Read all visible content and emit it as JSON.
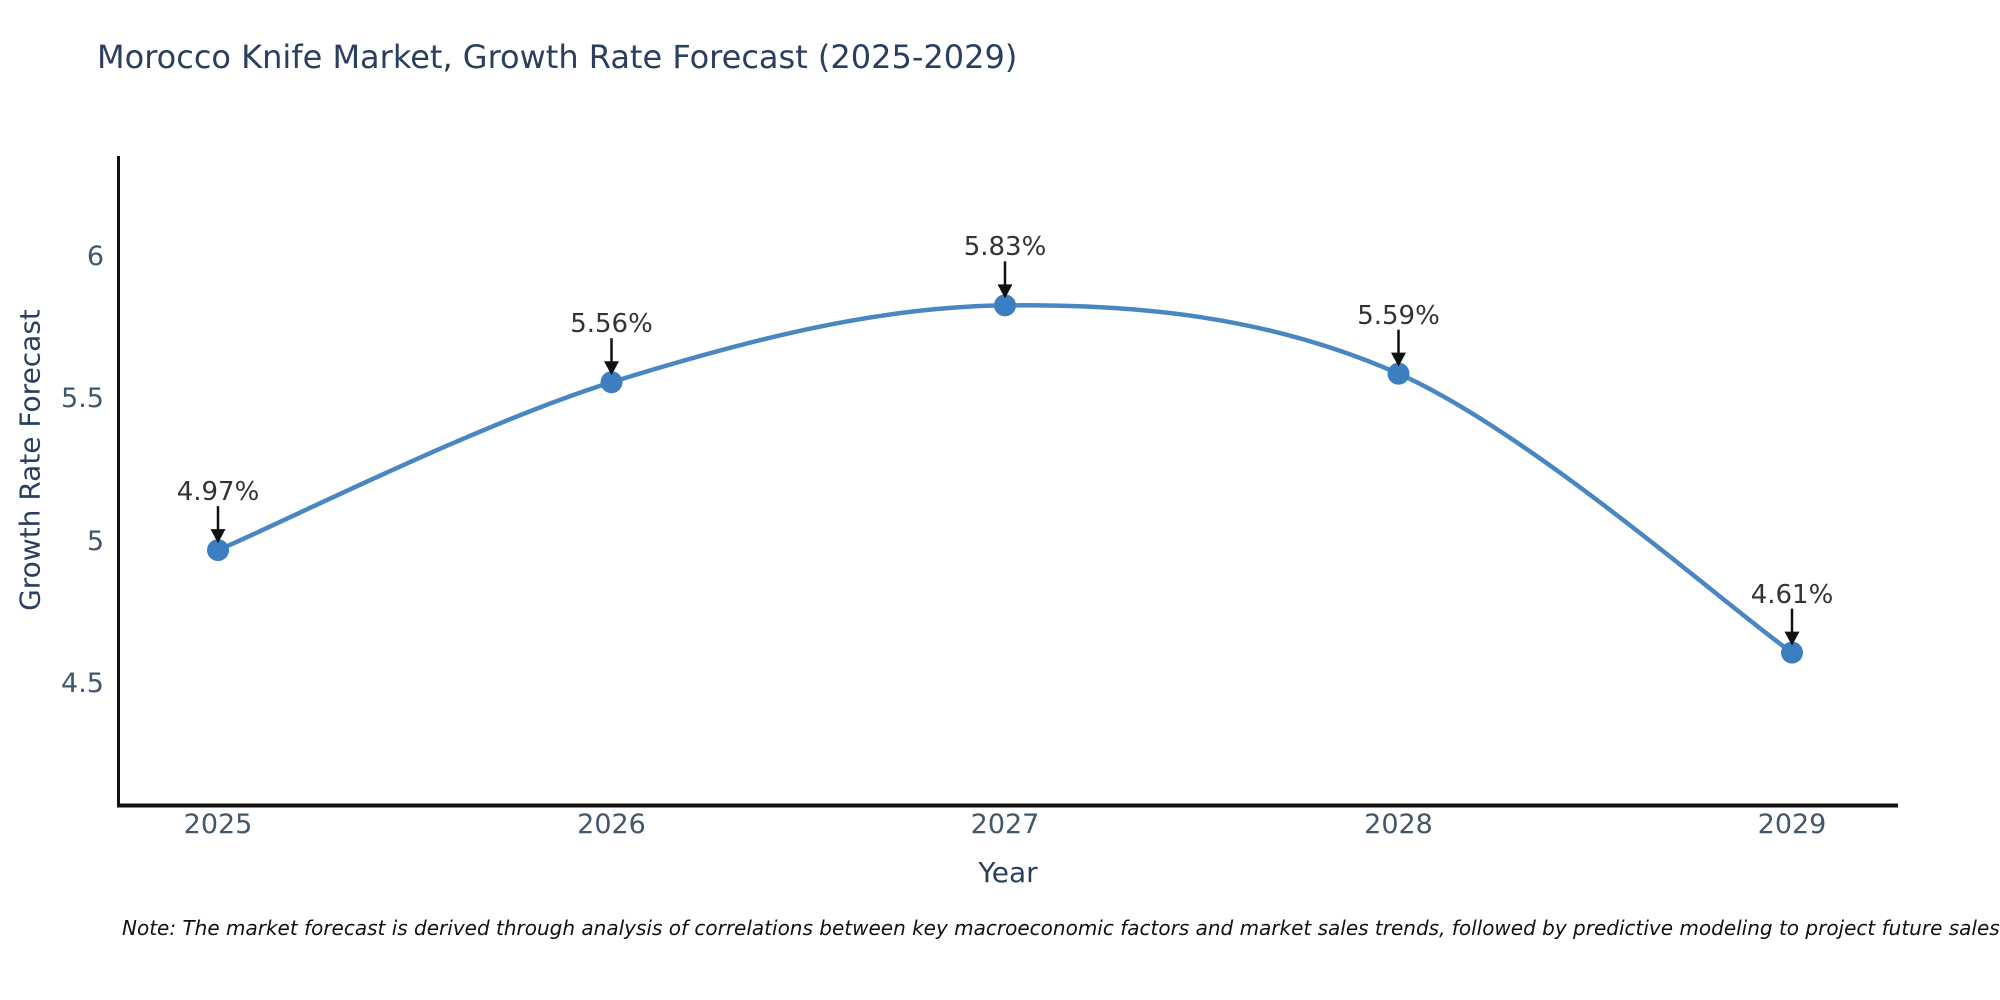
{
  "title": "Morocco Knife Market, Growth Rate Forecast (2025-2029)",
  "note": "Note: The market forecast is derived through analysis of correlations between key macroeconomic factors and market sales trends, followed by predictive modeling to project future sales",
  "chart_data": {
    "type": "line",
    "title": "Morocco Knife Market, Growth Rate Forecast (2025-2029)",
    "line_shape": "spline",
    "x": [
      2025,
      2026,
      2027,
      2028,
      2029
    ],
    "categories": [
      "2025",
      "2026",
      "2027",
      "2028",
      "2029"
    ],
    "values": [
      4.97,
      5.56,
      5.83,
      5.59,
      4.61
    ],
    "point_labels": [
      "4.97%",
      "5.56%",
      "5.83%",
      "5.59%",
      "4.61%"
    ],
    "xlabel": "Year",
    "ylabel": "Growth Rate Forecast",
    "yticks": [
      6,
      5.5,
      5,
      4.5
    ],
    "ytick_labels": [
      "6",
      "5.5",
      "5",
      "4.5"
    ],
    "ylim": [
      4.07,
      6.35
    ],
    "xlim": [
      2024.75,
      2029.27
    ],
    "grid": false,
    "legend_position": "none",
    "annotations_have_arrows": true,
    "colors": {
      "line": "#4a87c0",
      "marker": "#3c7ebf",
      "axis": "#111111",
      "arrow": "#111111",
      "title_text": "#2a3f5f",
      "tick_text": "#42576b",
      "annotation_text": "#333333",
      "background": "#ffffff"
    }
  }
}
